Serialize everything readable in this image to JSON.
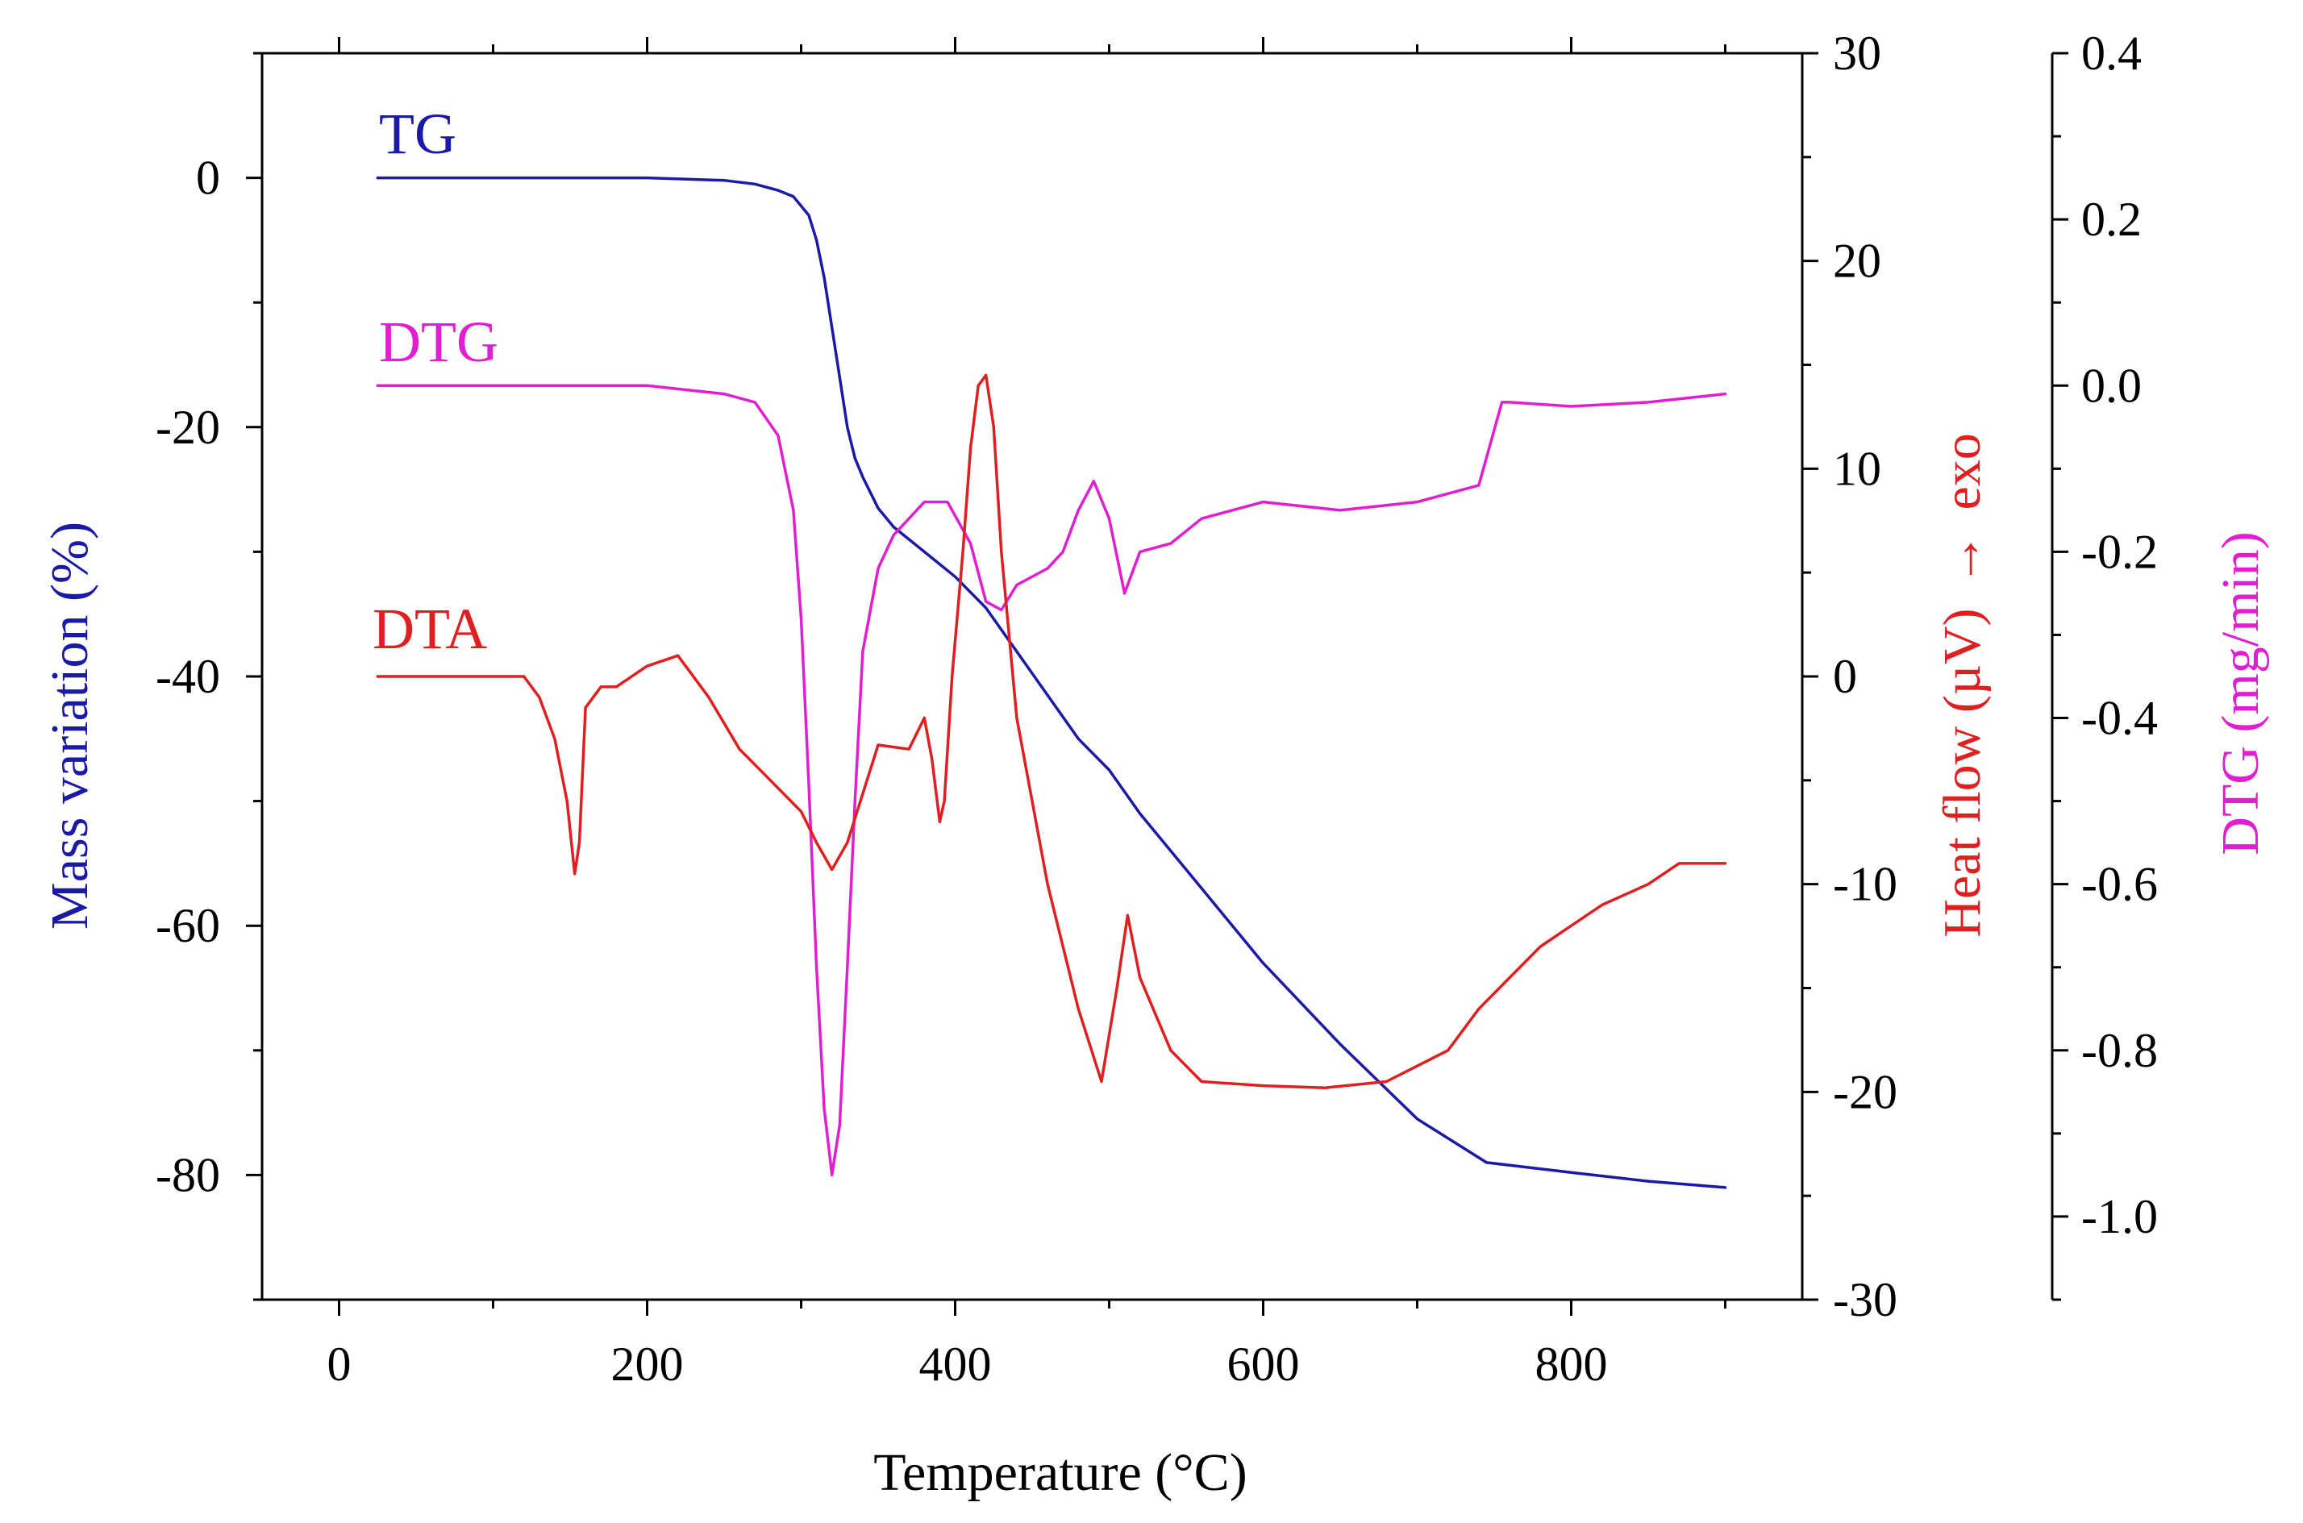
{
  "chart_data": {
    "type": "line",
    "title": "",
    "xlabel": "Temperature (°C)",
    "xlim": [
      -50,
      950
    ],
    "xticks": [
      0,
      200,
      400,
      600,
      800
    ],
    "xtick_labels": [
      "0",
      "200",
      "400",
      "600",
      "800"
    ],
    "axes": {
      "left": {
        "label": "Mass variation (%)",
        "color": "#1a1aa6",
        "lim": [
          -90,
          10
        ],
        "ticks": [
          0,
          -20,
          -40,
          -60,
          -80
        ],
        "tick_labels": [
          "0",
          "-20",
          "-40",
          "-60",
          "-80"
        ]
      },
      "right1": {
        "label_main": "Heat flow (µV)",
        "label_arrow": "→",
        "label_exo": "exo",
        "color": "#e02020",
        "lim": [
          -30,
          30
        ],
        "ticks": [
          30,
          20,
          10,
          0,
          -10,
          -20,
          -30
        ],
        "tick_labels": [
          "30",
          "20",
          "10",
          "0",
          "-10",
          "-20",
          "-30"
        ]
      },
      "right2": {
        "label": "DTG (mg/min)",
        "color": "#e020d0",
        "lim": [
          -1.1,
          0.4
        ],
        "ticks": [
          0.4,
          0.2,
          0.0,
          -0.2,
          -0.4,
          -0.6,
          -0.8,
          -1.0
        ],
        "tick_labels": [
          "0.4",
          "0.2",
          "0.0",
          "-0.2",
          "-0.4",
          "-0.6",
          "-0.8",
          "-1.0"
        ]
      }
    },
    "series": [
      {
        "name": "TG",
        "axis": "left",
        "color": "#1a1aa6",
        "x": [
          25,
          200,
          250,
          270,
          285,
          295,
          305,
          310,
          315,
          320,
          325,
          330,
          335,
          340,
          350,
          360,
          380,
          400,
          420,
          440,
          460,
          480,
          500,
          520,
          560,
          600,
          650,
          700,
          745,
          800,
          850,
          900
        ],
        "y": [
          0,
          0,
          -0.2,
          -0.5,
          -1.0,
          -1.5,
          -3.0,
          -5.0,
          -8.0,
          -12.0,
          -16.0,
          -20.0,
          -22.5,
          -24.0,
          -26.5,
          -28.0,
          -30.0,
          -32.0,
          -34.5,
          -38.0,
          -41.5,
          -45.0,
          -47.5,
          -51.0,
          -57.0,
          -63.0,
          -69.5,
          -75.5,
          -79.0,
          -79.8,
          -80.5,
          -81.0
        ]
      },
      {
        "name": "DTG",
        "axis": "right2",
        "color": "#e020d0",
        "x": [
          25,
          200,
          250,
          270,
          285,
          295,
          300,
          305,
          310,
          315,
          320,
          325,
          330,
          335,
          340,
          350,
          360,
          380,
          395,
          410,
          420,
          430,
          440,
          460,
          470,
          480,
          490,
          500,
          510,
          520,
          540,
          560,
          600,
          650,
          700,
          740,
          755,
          760,
          800,
          850,
          900
        ],
        "y": [
          0.0,
          0.0,
          -0.01,
          -0.02,
          -0.06,
          -0.15,
          -0.28,
          -0.48,
          -0.7,
          -0.87,
          -0.95,
          -0.89,
          -0.7,
          -0.5,
          -0.32,
          -0.22,
          -0.18,
          -0.14,
          -0.14,
          -0.19,
          -0.26,
          -0.27,
          -0.24,
          -0.22,
          -0.2,
          -0.15,
          -0.115,
          -0.16,
          -0.25,
          -0.2,
          -0.19,
          -0.16,
          -0.14,
          -0.15,
          -0.14,
          -0.12,
          -0.02,
          -0.02,
          -0.025,
          -0.02,
          -0.01
        ]
      },
      {
        "name": "DTA",
        "axis": "right1",
        "color": "#e02020",
        "x": [
          25,
          120,
          130,
          140,
          148,
          153,
          156,
          160,
          170,
          180,
          200,
          220,
          240,
          260,
          280,
          300,
          310,
          320,
          330,
          350,
          370,
          380,
          385,
          390,
          393,
          398,
          405,
          410,
          415,
          420,
          425,
          430,
          440,
          460,
          480,
          495,
          505,
          512,
          520,
          540,
          560,
          600,
          640,
          680,
          720,
          740,
          760,
          780,
          800,
          820,
          850,
          870,
          900
        ],
        "y": [
          0,
          0,
          -1.0,
          -3.0,
          -6.0,
          -9.5,
          -8.0,
          -1.5,
          -0.5,
          -0.5,
          0.5,
          1.0,
          -1.0,
          -3.5,
          -5.0,
          -6.5,
          -8.0,
          -9.3,
          -8.0,
          -3.3,
          -3.5,
          -2.0,
          -4.0,
          -7.0,
          -6.0,
          0.0,
          6.0,
          11.0,
          14.0,
          14.5,
          12.0,
          6.0,
          -2.0,
          -10.0,
          -16.0,
          -19.5,
          -15.0,
          -11.5,
          -14.5,
          -18.0,
          -19.5,
          -19.7,
          -19.8,
          -19.5,
          -18.0,
          -16.0,
          -14.5,
          -13.0,
          -12.0,
          -11.0,
          -10.0,
          -9.0,
          -9.0
        ]
      }
    ]
  }
}
